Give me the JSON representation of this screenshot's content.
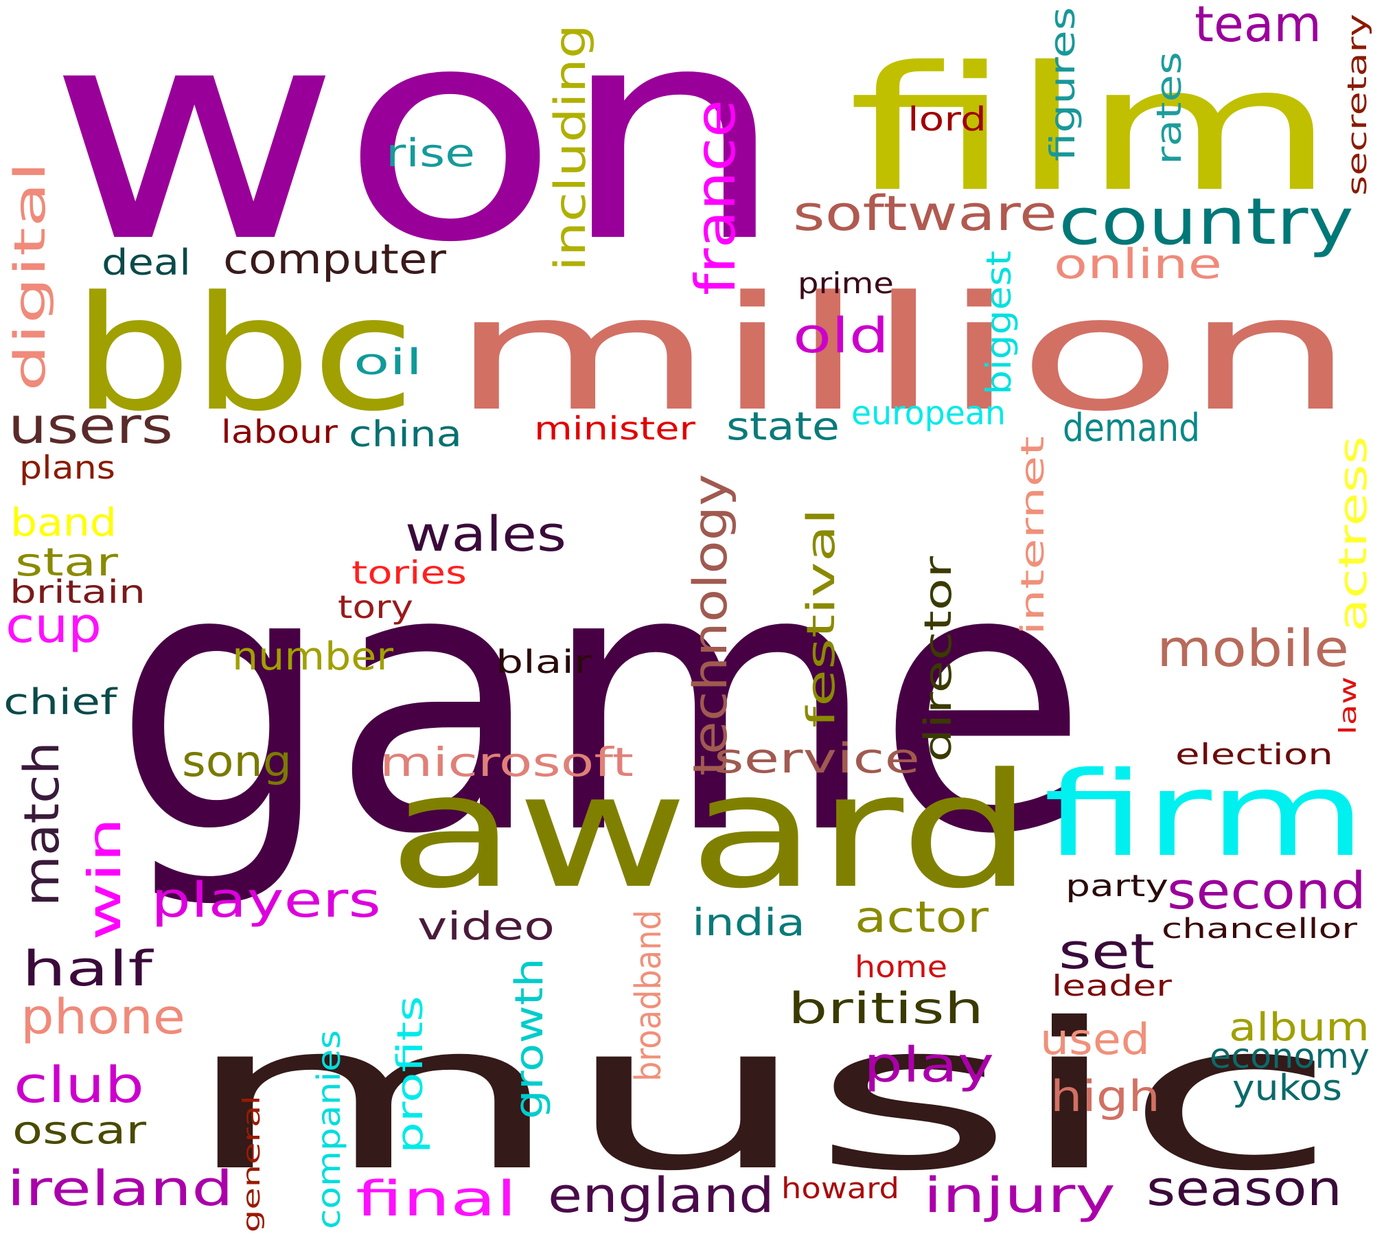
{
  "words": [
    {
      "text": "won",
      "color": "#990099"
    },
    {
      "text": "film",
      "color": "#c0c000"
    },
    {
      "text": "team",
      "color": "#9b009b"
    },
    {
      "text": "secretary",
      "color": "#8b1a00"
    },
    {
      "text": "figures",
      "color": "#199899"
    },
    {
      "text": "rates",
      "color": "#1d9c9c"
    },
    {
      "text": "lord",
      "color": "#a00000"
    },
    {
      "text": "rise",
      "color": "#179a9a"
    },
    {
      "text": "including",
      "color": "#b0b000"
    },
    {
      "text": "france",
      "color": "#ff00ff"
    },
    {
      "text": "software",
      "color": "#b05a50"
    },
    {
      "text": "country",
      "color": "#007878"
    },
    {
      "text": "digital",
      "color": "#f08a7a"
    },
    {
      "text": "bbc",
      "color": "#a0a000"
    },
    {
      "text": "million",
      "color": "#d27064"
    },
    {
      "text": "deal",
      "color": "#0a4a4a"
    },
    {
      "text": "computer",
      "color": "#3a1a1a"
    },
    {
      "text": "online",
      "color": "#f08a7a"
    },
    {
      "text": "biggest",
      "color": "#00e0e0"
    },
    {
      "text": "prime",
      "color": "#3a0a1a"
    },
    {
      "text": "old",
      "color": "#cc00cc"
    },
    {
      "text": "oil",
      "color": "#109a9a"
    },
    {
      "text": "users",
      "color": "#5a2a2a"
    },
    {
      "text": "labour",
      "color": "#8a0000"
    },
    {
      "text": "china",
      "color": "#087070"
    },
    {
      "text": "minister",
      "color": "#e00000"
    },
    {
      "text": "state",
      "color": "#0a7a7a"
    },
    {
      "text": "european",
      "color": "#00eaea"
    },
    {
      "text": "demand",
      "color": "#0a8888"
    },
    {
      "text": "plans",
      "color": "#8a1a00"
    },
    {
      "text": "game",
      "color": "#470044"
    },
    {
      "text": "band",
      "color": "#ffff00"
    },
    {
      "text": "actress",
      "color": "#ffff30"
    },
    {
      "text": "star",
      "color": "#8a8a00"
    },
    {
      "text": "britain",
      "color": "#7a1a1a"
    },
    {
      "text": "tories",
      "color": "#ff2020"
    },
    {
      "text": "tory",
      "color": "#9a1a1a"
    },
    {
      "text": "wales",
      "color": "#3a0a3a"
    },
    {
      "text": "internet",
      "color": "#f0907a"
    },
    {
      "text": "technology",
      "color": "#a05a50"
    },
    {
      "text": "festival",
      "color": "#8a8a00"
    },
    {
      "text": "cup",
      "color": "#ff10ff"
    },
    {
      "text": "number",
      "color": "#a0a000"
    },
    {
      "text": "mobile",
      "color": "#b86a5a"
    },
    {
      "text": "blair",
      "color": "#2a0a0a"
    },
    {
      "text": "director",
      "color": "#3a3a00"
    },
    {
      "text": "chief",
      "color": "#0a4a4a"
    },
    {
      "text": "law",
      "color": "#e01010"
    },
    {
      "text": "election",
      "color": "#6a0a0a"
    },
    {
      "text": "song",
      "color": "#7a7a00"
    },
    {
      "text": "microsoft",
      "color": "#e08078"
    },
    {
      "text": "service",
      "color": "#a05a50"
    },
    {
      "text": "match",
      "color": "#3a1a3a"
    },
    {
      "text": "award",
      "color": "#808000"
    },
    {
      "text": "firm",
      "color": "#00f0f0"
    },
    {
      "text": "win",
      "color": "#ff00ff"
    },
    {
      "text": "players",
      "color": "#dd00dd"
    },
    {
      "text": "party",
      "color": "#2a0a0a"
    },
    {
      "text": "second",
      "color": "#9a009a"
    },
    {
      "text": "video",
      "color": "#4a1a3a"
    },
    {
      "text": "broadband",
      "color": "#f0907a"
    },
    {
      "text": "india",
      "color": "#0a7a7a"
    },
    {
      "text": "actor",
      "color": "#8a8a00"
    },
    {
      "text": "chancellor",
      "color": "#3a0a0a"
    },
    {
      "text": "half",
      "color": "#3a0a3a"
    },
    {
      "text": "music",
      "color": "#341a18"
    },
    {
      "text": "set",
      "color": "#3a0a3a"
    },
    {
      "text": "home",
      "color": "#d01010"
    },
    {
      "text": "leader",
      "color": "#7a0a0a"
    },
    {
      "text": "phone",
      "color": "#f08a7a"
    },
    {
      "text": "growth",
      "color": "#00cccc"
    },
    {
      "text": "british",
      "color": "#3a3a00"
    },
    {
      "text": "profits",
      "color": "#00eaea"
    },
    {
      "text": "used",
      "color": "#f0907a"
    },
    {
      "text": "album",
      "color": "#a0a000"
    },
    {
      "text": "economy",
      "color": "#0a6a6a"
    },
    {
      "text": "club",
      "color": "#cc00cc"
    },
    {
      "text": "play",
      "color": "#aa00aa"
    },
    {
      "text": "high",
      "color": "#d27064"
    },
    {
      "text": "yukos",
      "color": "#0a6a6a"
    },
    {
      "text": "companies",
      "color": "#00dddd"
    },
    {
      "text": "oscar",
      "color": "#4a4a00"
    },
    {
      "text": "general",
      "color": "#9a1a00"
    },
    {
      "text": "ireland",
      "color": "#aa00aa"
    },
    {
      "text": "final",
      "color": "#ff10ff"
    },
    {
      "text": "england",
      "color": "#4a0a4a"
    },
    {
      "text": "howard",
      "color": "#aa0a0a"
    },
    {
      "text": "injury",
      "color": "#aa00aa"
    },
    {
      "text": "season",
      "color": "#3a0a3a"
    }
  ]
}
